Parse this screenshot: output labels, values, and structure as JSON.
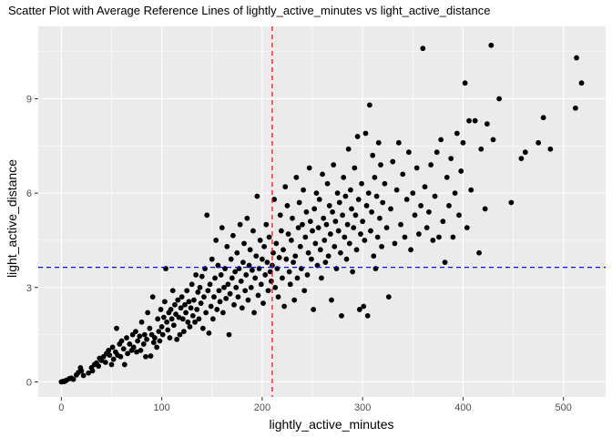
{
  "chart_data": {
    "type": "scatter",
    "title": "Scatter Plot with Average Reference Lines of lightly_active_minutes vs light_active_distance",
    "xlabel": "lightly_active_minutes",
    "ylabel": "light_active_distance",
    "xlim": [
      -23,
      542
    ],
    "ylim": [
      -0.48,
      11.3
    ],
    "x_ticks": [
      0,
      100,
      200,
      300,
      400,
      500
    ],
    "y_ticks": [
      0,
      3,
      6,
      9
    ],
    "x_tick_labels": [
      "0",
      "100",
      "200",
      "300",
      "400",
      "500"
    ],
    "y_tick_labels": [
      "0",
      "3",
      "6",
      "9"
    ],
    "grid": true,
    "reference_lines": [
      {
        "orientation": "vertical",
        "value": 210,
        "color": "#ff0000",
        "style": "dashed"
      },
      {
        "orientation": "horizontal",
        "value": 3.64,
        "color": "#0000ff",
        "style": "dashed"
      }
    ],
    "point_color": "#000000",
    "panel_color": "#ebebeb",
    "grid_color": "#ffffff",
    "points": [
      [
        0,
        0
      ],
      [
        2,
        0.02
      ],
      [
        3,
        0.01
      ],
      [
        5,
        0.05
      ],
      [
        8,
        0.1
      ],
      [
        10,
        0.12
      ],
      [
        12,
        0.08
      ],
      [
        15,
        0.22
      ],
      [
        17,
        0.3
      ],
      [
        19,
        0.45
      ],
      [
        20,
        0.35
      ],
      [
        22,
        0.2
      ],
      [
        27,
        0.28
      ],
      [
        30,
        0.45
      ],
      [
        31,
        0.35
      ],
      [
        33,
        0.55
      ],
      [
        35,
        0.6
      ],
      [
        37,
        0.5
      ],
      [
        38,
        0.75
      ],
      [
        40,
        0.68
      ],
      [
        42,
        0.8
      ],
      [
        44,
        0.62
      ],
      [
        45,
        0.9
      ],
      [
        47,
        1.0
      ],
      [
        48,
        0.85
      ],
      [
        50,
        0.55
      ],
      [
        51,
        1.1
      ],
      [
        52,
        0.72
      ],
      [
        54,
        0.95
      ],
      [
        55,
        1.7
      ],
      [
        56,
        0.85
      ],
      [
        58,
        1.2
      ],
      [
        59,
        0.8
      ],
      [
        60,
        1.3
      ],
      [
        62,
        1.05
      ],
      [
        63,
        0.55
      ],
      [
        65,
        1.4
      ],
      [
        66,
        0.9
      ],
      [
        68,
        1.2
      ],
      [
        70,
        1.0
      ],
      [
        71,
        1.5
      ],
      [
        72,
        1.1
      ],
      [
        74,
        1.6
      ],
      [
        75,
        0.95
      ],
      [
        76,
        1.3
      ],
      [
        78,
        1.45
      ],
      [
        79,
        1.0
      ],
      [
        80,
        1.9
      ],
      [
        82,
        1.2
      ],
      [
        83,
        1.5
      ],
      [
        84,
        0.8
      ],
      [
        85,
        1.35
      ],
      [
        86,
        2.2
      ],
      [
        88,
        1.7
      ],
      [
        89,
        0.82
      ],
      [
        90,
        1.5
      ],
      [
        91,
        2.7
      ],
      [
        92,
        1.25
      ],
      [
        93,
        1.4
      ],
      [
        95,
        1.1
      ],
      [
        96,
        2.0
      ],
      [
        97,
        1.6
      ],
      [
        98,
        1.3
      ],
      [
        99,
        2.3
      ],
      [
        100,
        1.75
      ],
      [
        101,
        1.5
      ],
      [
        102,
        2.05
      ],
      [
        103,
        2.55
      ],
      [
        104,
        3.6
      ],
      [
        105,
        1.9
      ],
      [
        106,
        1.65
      ],
      [
        107,
        2.2
      ],
      [
        108,
        1.4
      ],
      [
        109,
        2.3
      ],
      [
        110,
        2.0
      ],
      [
        111,
        2.9
      ],
      [
        112,
        1.8
      ],
      [
        113,
        2.45
      ],
      [
        114,
        2.15
      ],
      [
        115,
        1.35
      ],
      [
        116,
        2.6
      ],
      [
        117,
        2.05
      ],
      [
        118,
        1.5
      ],
      [
        119,
        2.35
      ],
      [
        120,
        2.7
      ],
      [
        121,
        2.0
      ],
      [
        122,
        1.6
      ],
      [
        123,
        2.45
      ],
      [
        124,
        2.2
      ],
      [
        125,
        2.9
      ],
      [
        126,
        1.9
      ],
      [
        127,
        2.55
      ],
      [
        128,
        1.75
      ],
      [
        129,
        2.35
      ],
      [
        130,
        3.1
      ],
      [
        131,
        2.1
      ],
      [
        132,
        2.6
      ],
      [
        133,
        1.9
      ],
      [
        134,
        3.4
      ],
      [
        135,
        2.3
      ],
      [
        136,
        2.85
      ],
      [
        137,
        2.0
      ],
      [
        138,
        3.0
      ],
      [
        139,
        2.5
      ],
      [
        140,
        3.35
      ],
      [
        141,
        1.7
      ],
      [
        142,
        2.7
      ],
      [
        143,
        3.6
      ],
      [
        144,
        2.2
      ],
      [
        145,
        5.3
      ],
      [
        146,
        2.9
      ],
      [
        147,
        1.55
      ],
      [
        148,
        3.1
      ],
      [
        149,
        2.4
      ],
      [
        150,
        3.9
      ],
      [
        151,
        2.0
      ],
      [
        152,
        2.7
      ],
      [
        153,
        3.3
      ],
      [
        154,
        4.5
      ],
      [
        155,
        2.3
      ],
      [
        156,
        3.7
      ],
      [
        157,
        2.9
      ],
      [
        158,
        2.55
      ],
      [
        159,
        3.4
      ],
      [
        160,
        4.9
      ],
      [
        161,
        2.2
      ],
      [
        162,
        3.0
      ],
      [
        163,
        3.6
      ],
      [
        164,
        2.65
      ],
      [
        165,
        4.3
      ],
      [
        166,
        3.1
      ],
      [
        167,
        1.5
      ],
      [
        168,
        2.8
      ],
      [
        169,
        3.9
      ],
      [
        170,
        3.3
      ],
      [
        171,
        4.65
      ],
      [
        172,
        2.45
      ],
      [
        173,
        3.5
      ],
      [
        174,
        3.0
      ],
      [
        175,
        4.1
      ],
      [
        176,
        2.7
      ],
      [
        177,
        3.6
      ],
      [
        178,
        5.0
      ],
      [
        179,
        3.2
      ],
      [
        180,
        2.35
      ],
      [
        181,
        3.8
      ],
      [
        182,
        4.4
      ],
      [
        183,
        2.9
      ],
      [
        184,
        3.4
      ],
      [
        185,
        5.2
      ],
      [
        186,
        2.6
      ],
      [
        187,
        3.7
      ],
      [
        188,
        4.2
      ],
      [
        189,
        3.0
      ],
      [
        190,
        3.55
      ],
      [
        191,
        4.8
      ],
      [
        192,
        2.2
      ],
      [
        193,
        3.3
      ],
      [
        194,
        4.0
      ],
      [
        195,
        5.9
      ],
      [
        196,
        2.75
      ],
      [
        197,
        3.6
      ],
      [
        198,
        4.5
      ],
      [
        199,
        3.1
      ],
      [
        200,
        3.9
      ],
      [
        201,
        2.5
      ],
      [
        202,
        4.3
      ],
      [
        203,
        3.4
      ],
      [
        204,
        5.0
      ],
      [
        205,
        3.8
      ],
      [
        206,
        2.9
      ],
      [
        207,
        4.6
      ],
      [
        208,
        3.5
      ],
      [
        209,
        3.2
      ],
      [
        210,
        3.7
      ],
      [
        211,
        4.1
      ],
      [
        212,
        5.8
      ],
      [
        213,
        3.0
      ],
      [
        214,
        4.4
      ],
      [
        215,
        3.6
      ],
      [
        216,
        2.7
      ],
      [
        217,
        3.95
      ],
      [
        218,
        5.3
      ],
      [
        219,
        4.8
      ],
      [
        220,
        3.3
      ],
      [
        221,
        4.2
      ],
      [
        222,
        2.4
      ],
      [
        223,
        6.2
      ],
      [
        224,
        3.9
      ],
      [
        225,
        5.6
      ],
      [
        226,
        4.7
      ],
      [
        227,
        3.5
      ],
      [
        228,
        3.1
      ],
      [
        229,
        4.5
      ],
      [
        230,
        5.2
      ],
      [
        231,
        3.8
      ],
      [
        232,
        2.6
      ],
      [
        233,
        4.0
      ],
      [
        234,
        6.5
      ],
      [
        235,
        3.3
      ],
      [
        236,
        4.9
      ],
      [
        237,
        5.7
      ],
      [
        238,
        4.3
      ],
      [
        239,
        3.6
      ],
      [
        240,
        5.0
      ],
      [
        241,
        6.1
      ],
      [
        242,
        2.9
      ],
      [
        243,
        4.6
      ],
      [
        244,
        5.4
      ],
      [
        245,
        3.4
      ],
      [
        246,
        4.1
      ],
      [
        247,
        6.8
      ],
      [
        248,
        5.1
      ],
      [
        249,
        3.9
      ],
      [
        250,
        4.8
      ],
      [
        251,
        2.3
      ],
      [
        252,
        5.5
      ],
      [
        253,
        4.4
      ],
      [
        254,
        6.0
      ],
      [
        255,
        3.7
      ],
      [
        256,
        4.9
      ],
      [
        257,
        5.8
      ],
      [
        258,
        4.2
      ],
      [
        259,
        3.3
      ],
      [
        260,
        6.6
      ],
      [
        261,
        5.2
      ],
      [
        262,
        4.5
      ],
      [
        263,
        3.8
      ],
      [
        264,
        5.0
      ],
      [
        265,
        6.3
      ],
      [
        266,
        4.0
      ],
      [
        267,
        5.6
      ],
      [
        268,
        4.7
      ],
      [
        269,
        2.6
      ],
      [
        270,
        5.4
      ],
      [
        271,
        6.9
      ],
      [
        272,
        4.3
      ],
      [
        273,
        5.1
      ],
      [
        274,
        3.6
      ],
      [
        275,
        6.0
      ],
      [
        276,
        4.8
      ],
      [
        277,
        5.7
      ],
      [
        278,
        4.1
      ],
      [
        279,
        2.1
      ],
      [
        280,
        5.3
      ],
      [
        281,
        6.5
      ],
      [
        282,
        4.6
      ],
      [
        283,
        5.9
      ],
      [
        284,
        3.9
      ],
      [
        285,
        5.0
      ],
      [
        286,
        7.4
      ],
      [
        287,
        4.4
      ],
      [
        288,
        6.1
      ],
      [
        289,
        5.5
      ],
      [
        290,
        3.5
      ],
      [
        291,
        4.9
      ],
      [
        292,
        6.8
      ],
      [
        293,
        5.3
      ],
      [
        294,
        4.2
      ],
      [
        295,
        7.8
      ],
      [
        296,
        5.8
      ],
      [
        297,
        2.3
      ],
      [
        298,
        4.7
      ],
      [
        299,
        6.3
      ],
      [
        300,
        5.1
      ],
      [
        301,
        2.4
      ],
      [
        302,
        4.5
      ],
      [
        303,
        7.9
      ],
      [
        304,
        5.6
      ],
      [
        305,
        2.1
      ],
      [
        306,
        6.0
      ],
      [
        307,
        8.8
      ],
      [
        308,
        4.8
      ],
      [
        309,
        5.4
      ],
      [
        310,
        7.2
      ],
      [
        311,
        4.0
      ],
      [
        312,
        6.5
      ],
      [
        313,
        3.6
      ],
      [
        314,
        5.9
      ],
      [
        315,
        4.6
      ],
      [
        316,
        7.6
      ],
      [
        317,
        5.2
      ],
      [
        318,
        6.9
      ],
      [
        319,
        4.3
      ],
      [
        320,
        5.7
      ],
      [
        322,
        6.3
      ],
      [
        324,
        4.9
      ],
      [
        326,
        2.7
      ],
      [
        328,
        5.5
      ],
      [
        330,
        7.0
      ],
      [
        332,
        4.4
      ],
      [
        334,
        6.1
      ],
      [
        336,
        7.6
      ],
      [
        338,
        5.0
      ],
      [
        340,
        6.6
      ],
      [
        342,
        4.6
      ],
      [
        344,
        5.8
      ],
      [
        346,
        7.3
      ],
      [
        348,
        4.2
      ],
      [
        350,
        6.0
      ],
      [
        352,
        5.3
      ],
      [
        354,
        6.8
      ],
      [
        356,
        4.7
      ],
      [
        358,
        5.6
      ],
      [
        360,
        10.6
      ],
      [
        362,
        6.2
      ],
      [
        364,
        4.9
      ],
      [
        366,
        5.4
      ],
      [
        368,
        6.9
      ],
      [
        370,
        4.5
      ],
      [
        372,
        5.9
      ],
      [
        374,
        7.3
      ],
      [
        376,
        4.6
      ],
      [
        378,
        7.7
      ],
      [
        380,
        5.1
      ],
      [
        382,
        3.8
      ],
      [
        384,
        6.5
      ],
      [
        386,
        5.6
      ],
      [
        388,
        7.1
      ],
      [
        390,
        4.6
      ],
      [
        392,
        6.0
      ],
      [
        394,
        7.9
      ],
      [
        396,
        5.3
      ],
      [
        398,
        6.7
      ],
      [
        400,
        7.6
      ],
      [
        402,
        9.5
      ],
      [
        404,
        4.9
      ],
      [
        406,
        8.3
      ],
      [
        408,
        6.1
      ],
      [
        412,
        8.3
      ],
      [
        416,
        4.1
      ],
      [
        418,
        7.4
      ],
      [
        422,
        5.5
      ],
      [
        424,
        8.2
      ],
      [
        428,
        10.7
      ],
      [
        430,
        7.7
      ],
      [
        436,
        9.0
      ],
      [
        448,
        5.7
      ],
      [
        458,
        7.1
      ],
      [
        462,
        7.3
      ],
      [
        475,
        7.6
      ],
      [
        480,
        8.4
      ],
      [
        487,
        7.4
      ],
      [
        512,
        8.7
      ],
      [
        513,
        10.3
      ],
      [
        518,
        9.5
      ]
    ]
  }
}
